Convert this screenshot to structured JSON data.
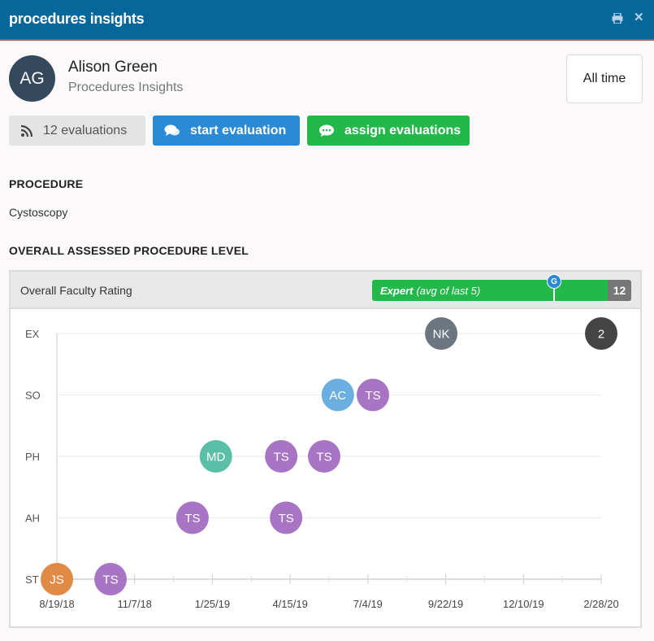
{
  "window": {
    "title": "procedures insights",
    "print_icon": "print-icon",
    "close_icon": "close-icon"
  },
  "user": {
    "initials": "AG",
    "name": "Alison Green",
    "subtitle": "Procedures Insights"
  },
  "timeframe_button": "All time",
  "actions": {
    "evaluations_label": "12 evaluations",
    "start_label": "start evaluation",
    "assign_label": "assign evaluations"
  },
  "procedure": {
    "heading": "PROCEDURE",
    "value": "Cystoscopy"
  },
  "overall_heading": "OVERALL ASSESSED PROCEDURE LEVEL",
  "rating": {
    "label": "Overall Faculty Rating",
    "level": "Expert",
    "level_note": "(avg of last 5)",
    "count": "12",
    "marker": "G"
  },
  "colors": {
    "brand": "#07669a",
    "blue": "#2b8ad6",
    "green": "#23b94a"
  },
  "chart_data": {
    "type": "scatter",
    "y_categories": [
      "ST",
      "AH",
      "PH",
      "SO",
      "EX"
    ],
    "x_ticks": [
      "8/19/18",
      "11/7/18",
      "1/25/19",
      "4/15/19",
      "7/4/19",
      "9/22/19",
      "12/10/19",
      "2/28/20"
    ],
    "xlim": [
      "2018-08-19",
      "2020-02-28"
    ],
    "points": [
      {
        "label": "JS",
        "date": "2018-08-19",
        "level": "ST",
        "color": "#e08a45"
      },
      {
        "label": "TS",
        "date": "2018-10-13",
        "level": "ST",
        "color": "#a875c4"
      },
      {
        "label": "TS",
        "date": "2019-01-05",
        "level": "AH",
        "color": "#a875c4"
      },
      {
        "label": "TS",
        "date": "2019-04-11",
        "level": "AH",
        "color": "#a875c4"
      },
      {
        "label": "MD",
        "date": "2019-01-29",
        "level": "PH",
        "color": "#5bbfa8"
      },
      {
        "label": "TS",
        "date": "2019-04-06",
        "level": "PH",
        "color": "#a875c4"
      },
      {
        "label": "TS",
        "date": "2019-05-20",
        "level": "PH",
        "color": "#a875c4"
      },
      {
        "label": "AC",
        "date": "2019-05-34",
        "level": "SO",
        "color": "#6aafe0"
      },
      {
        "label": "TS",
        "date": "2019-07-09",
        "level": "SO",
        "color": "#a875c4"
      },
      {
        "label": "NK",
        "date": "2019-09-17",
        "level": "EX",
        "color": "#6b7680"
      },
      {
        "label": "2",
        "date": "2020-02-28",
        "level": "EX",
        "color": "#444444"
      }
    ]
  }
}
